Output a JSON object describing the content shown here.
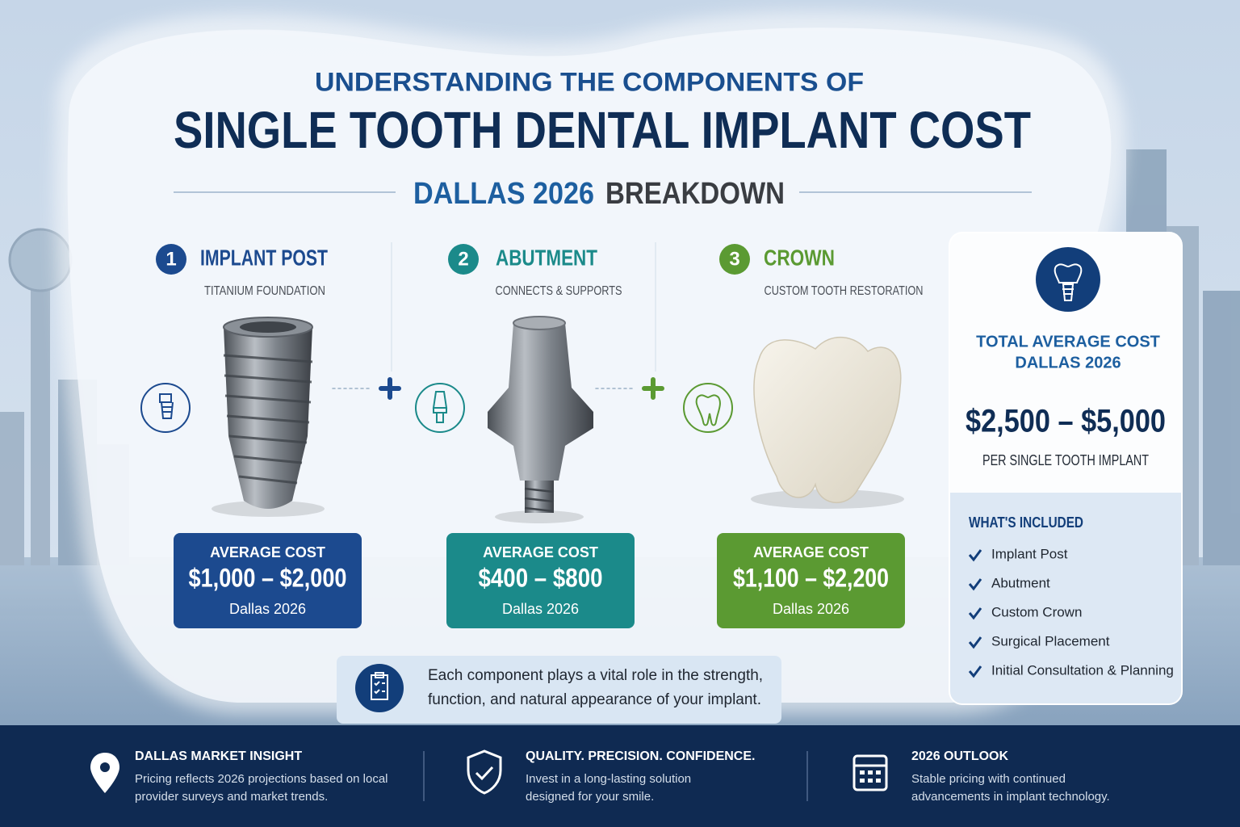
{
  "header": {
    "kicker": "UNDERSTANDING THE COMPONENTS OF",
    "title": "SINGLE TOOTH DENTAL IMPLANT COST",
    "subtitle_highlight": "DALLAS 2026",
    "subtitle_rest": "BREAKDOWN"
  },
  "components": [
    {
      "number": "1",
      "name": "IMPLANT POST",
      "description": "TITANIUM FOUNDATION",
      "cost_label": "AVERAGE COST",
      "cost": "$1,000 – $2,000",
      "location": "Dallas 2026"
    },
    {
      "number": "2",
      "name": "ABUTMENT",
      "description": "CONNECTS & SUPPORTS",
      "cost_label": "AVERAGE COST",
      "cost": "$400 – $800",
      "location": "Dallas 2026"
    },
    {
      "number": "3",
      "name": "CROWN",
      "description": "CUSTOM TOOTH RESTORATION",
      "cost_label": "AVERAGE COST",
      "cost": "$1,100 – $2,200",
      "location": "Dallas 2026"
    }
  ],
  "summary": {
    "title_lines": [
      "TOTAL AVERAGE COST",
      "DALLAS 2026"
    ],
    "price": "$2,500 – $5,000",
    "caption": "PER SINGLE TOOTH IMPLANT",
    "included_title": "WHAT'S INCLUDED",
    "included": [
      "Implant Post",
      "Abutment",
      "Custom Crown",
      "Surgical Placement",
      "Initial Consultation & Planning"
    ]
  },
  "note": {
    "lines": [
      "Each component plays a vital role in the strength,",
      "function, and natural appearance of your implant."
    ]
  },
  "footer": [
    {
      "title": "DALLAS MARKET INSIGHT",
      "lines": [
        "Pricing reflects 2026 projections based on local",
        "provider surveys and market trends."
      ]
    },
    {
      "title": "QUALITY. PRECISION. CONFIDENCE.",
      "lines": [
        "Invest in a long-lasting solution",
        "designed for your smile."
      ]
    },
    {
      "title": "2026 OUTLOOK",
      "lines": [
        "Stable pricing with continued",
        "advancements in implant technology."
      ]
    }
  ]
}
